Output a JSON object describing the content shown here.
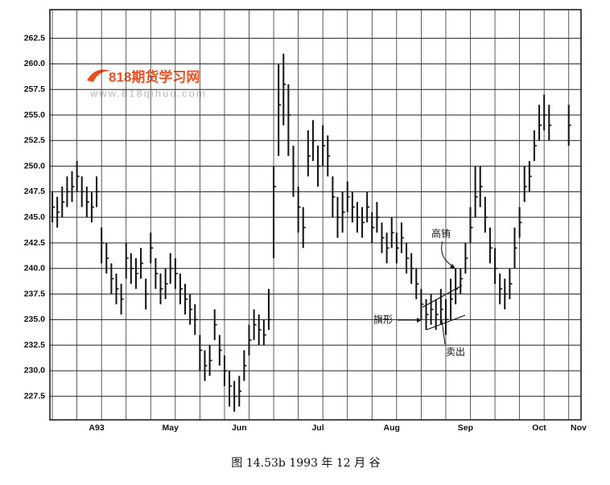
{
  "chart_data": {
    "type": "ohlc",
    "categories": [
      null,
      null,
      null,
      null,
      null,
      null,
      null,
      null,
      null,
      "A93",
      null,
      null,
      null,
      null,
      null,
      null,
      null,
      null,
      null,
      null,
      null,
      null,
      null,
      null,
      "May",
      null,
      null,
      null,
      null,
      null,
      null,
      null,
      null,
      null,
      null,
      null,
      null,
      null,
      "Jun",
      null,
      null,
      null,
      null,
      null,
      null,
      null,
      null,
      null,
      null,
      null,
      null,
      null,
      null,
      null,
      "Jul",
      null,
      null,
      null,
      null,
      null,
      null,
      null,
      null,
      null,
      null,
      null,
      null,
      null,
      null,
      "Aug",
      null,
      null,
      null,
      null,
      null,
      null,
      null,
      null,
      null,
      null,
      null,
      null,
      null,
      null,
      "Sep",
      null,
      null,
      null,
      null,
      null,
      null,
      null,
      null,
      null,
      null,
      null,
      null,
      null,
      null,
      "Oct",
      null,
      null,
      null,
      null,
      null,
      null,
      null,
      "Nov"
    ],
    "high": [
      247.5,
      247,
      248,
      249,
      249.5,
      250.5,
      249,
      248,
      247.5,
      249,
      244,
      242.5,
      240.5,
      239.5,
      238.5,
      242.5,
      241.5,
      241,
      242,
      239,
      243.5,
      241,
      239.5,
      240,
      241.5,
      241,
      239.5,
      238.5,
      237.5,
      236.5,
      233.5,
      232,
      232.5,
      236,
      233.5,
      231.5,
      230,
      229,
      229.5,
      232,
      234.5,
      236,
      235.5,
      235,
      238,
      250,
      260,
      261,
      258,
      252,
      248,
      246,
      253.5,
      254.5,
      252,
      254,
      253,
      249,
      247,
      247.5,
      248.5,
      247.5,
      246.5,
      246,
      247.5,
      245.5,
      246.5,
      244.5,
      243.5,
      245,
      243.5,
      244.5,
      242.5,
      241.5,
      240,
      238,
      237,
      237.5,
      237,
      238,
      237,
      239,
      240,
      240,
      242.5,
      246,
      250,
      250,
      247,
      244,
      242,
      239.5,
      239,
      240,
      244,
      246,
      250,
      250.5,
      253.5,
      256,
      257,
      256,
      null,
      null,
      null,
      256,
      null,
      null
    ],
    "low": [
      244.5,
      244,
      245,
      246,
      246.5,
      247.5,
      246,
      245,
      244.5,
      246,
      240.5,
      239.5,
      237.5,
      236.5,
      235.5,
      239,
      238.5,
      238,
      239,
      236,
      240.5,
      238,
      236.5,
      237,
      238.5,
      238,
      236.5,
      235.5,
      234.5,
      233.5,
      230,
      229,
      229.5,
      233,
      230.5,
      228.5,
      226.5,
      226,
      226.5,
      229,
      231.5,
      233,
      232.5,
      232.5,
      234,
      241,
      251,
      254,
      251,
      247,
      243.5,
      242,
      249,
      250.5,
      248,
      250,
      249,
      245,
      243,
      243.5,
      245.5,
      244.5,
      243.5,
      243,
      244.5,
      242.5,
      243.5,
      241.5,
      240.5,
      242,
      240.5,
      241.5,
      239.5,
      238.5,
      237,
      235,
      234,
      234.5,
      234,
      234.5,
      233.5,
      235,
      236.5,
      237.5,
      239.5,
      242.5,
      245,
      246,
      243.5,
      240.5,
      238.5,
      236.5,
      236,
      237,
      240,
      243,
      246.5,
      247.5,
      250.5,
      252.5,
      253.5,
      252.5,
      null,
      null,
      null,
      252,
      null,
      null
    ],
    "close": [
      246,
      245.5,
      246.5,
      247.5,
      248,
      249,
      247.5,
      246.5,
      246,
      247.5,
      242.5,
      241,
      239,
      238,
      237,
      241,
      240,
      239.5,
      240.5,
      237.5,
      242,
      239.5,
      238,
      238.5,
      240,
      239.5,
      238,
      237,
      236,
      235,
      232,
      230.5,
      231,
      234.5,
      232,
      230,
      228.5,
      227.5,
      228,
      230.5,
      233,
      234.5,
      234,
      233.5,
      235,
      248,
      256,
      258,
      255,
      250,
      246,
      244,
      251,
      252.5,
      250,
      252,
      251,
      247,
      245,
      245.5,
      247,
      246,
      245,
      244.5,
      246,
      244,
      245,
      243,
      242,
      243.5,
      242,
      243,
      241,
      240,
      238.5,
      236.5,
      235.5,
      236,
      235.5,
      236,
      235,
      237,
      238,
      239,
      241,
      244,
      247,
      248,
      245,
      242,
      240,
      238,
      237.5,
      238.5,
      242,
      244.5,
      248,
      249,
      252,
      254,
      255,
      254,
      null,
      null,
      null,
      254,
      null,
      null
    ],
    "color": "#111111",
    "ylim": [
      225.2,
      265.3
    ],
    "yticks": [
      227.5,
      {
        "value": 230,
        "label": "230.0"
      },
      232.5,
      {
        "value": 235,
        "label": "235.0"
      },
      237.5,
      {
        "value": 240,
        "label": "240.0"
      },
      242.5,
      {
        "value": 245,
        "label": "245.0"
      },
      247.5,
      {
        "value": 250,
        "label": "250.0"
      },
      252.5,
      {
        "value": 255,
        "label": "255.0"
      },
      257.5,
      {
        "value": 260,
        "label": "260.0"
      },
      262.5
    ],
    "grid": true,
    "annotations": [
      "高铕",
      "旗形",
      "卖出"
    ]
  },
  "watermark": {
    "title": "818期货学习网",
    "url": "www.818qihuo.com"
  },
  "caption": "图 14.53b   1993 年 12 月   谷"
}
